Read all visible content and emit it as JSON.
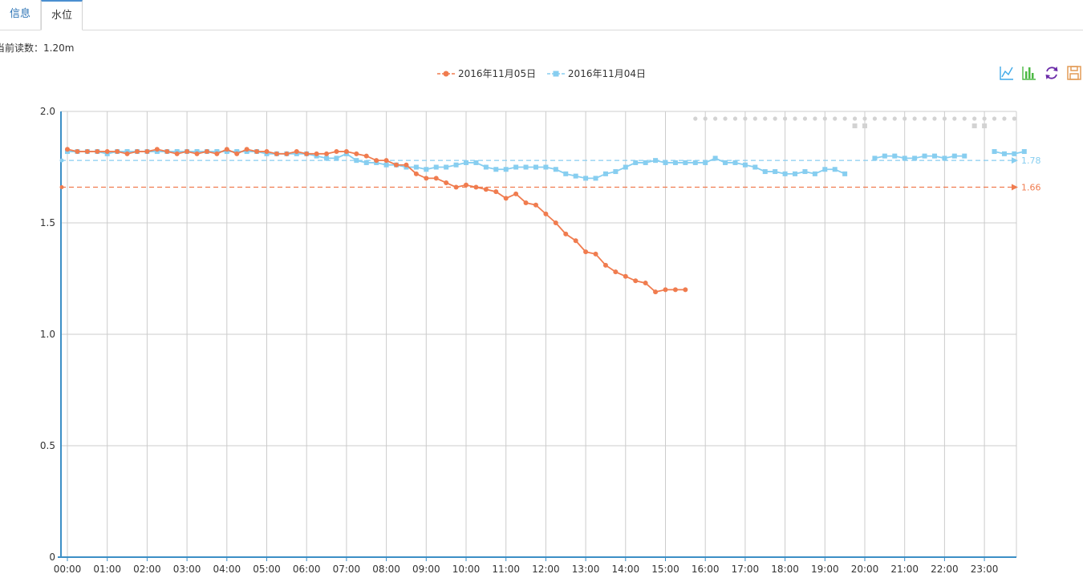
{
  "tabs": [
    {
      "label": "信息",
      "active": false
    },
    {
      "label": "水位",
      "active": true
    }
  ],
  "current_reading": {
    "label": "当前读数：",
    "value": "1.20m"
  },
  "toolbox": [
    "line-chart-icon",
    "bar-chart-icon",
    "restore-icon",
    "save-image-icon"
  ],
  "colors": {
    "series1": "#f07c4f",
    "series2": "#87cef0",
    "grid": "#cccccc",
    "axis": "#3c8fc6",
    "missing": "#d3d3d3"
  },
  "chart_data": {
    "type": "line",
    "x_ticks": [
      "00:00",
      "01:00",
      "02:00",
      "03:00",
      "04:00",
      "05:00",
      "06:00",
      "07:00",
      "08:00",
      "09:00",
      "10:00",
      "11:00",
      "12:00",
      "13:00",
      "14:00",
      "15:00",
      "16:00",
      "17:00",
      "18:00",
      "19:00",
      "20:00",
      "21:00",
      "22:00",
      "23:00"
    ],
    "x_interval_minutes": 15,
    "ylim": [
      0,
      2.0
    ],
    "y_ticks": [
      "0",
      "0.5",
      "1.0",
      "1.5",
      "2.0"
    ],
    "grid": true,
    "legend_position": "top-center",
    "series": [
      {
        "name": "2016年11月05日",
        "marker": "circle",
        "avg_label": "1.66",
        "values": [
          1.83,
          1.82,
          1.82,
          1.82,
          1.82,
          1.82,
          1.81,
          1.82,
          1.82,
          1.83,
          1.82,
          1.81,
          1.82,
          1.81,
          1.82,
          1.81,
          1.83,
          1.81,
          1.83,
          1.82,
          1.82,
          1.81,
          1.81,
          1.82,
          1.81,
          1.81,
          1.81,
          1.82,
          1.82,
          1.81,
          1.8,
          1.78,
          1.78,
          1.76,
          1.76,
          1.72,
          1.7,
          1.7,
          1.68,
          1.66,
          1.67,
          1.66,
          1.65,
          1.64,
          1.61,
          1.63,
          1.59,
          1.58,
          1.54,
          1.5,
          1.45,
          1.42,
          1.37,
          1.36,
          1.31,
          1.28,
          1.26,
          1.24,
          1.23,
          1.19,
          1.2,
          1.2,
          1.2,
          null,
          null,
          null,
          null,
          null,
          null,
          null,
          null,
          null,
          null,
          null,
          null,
          null,
          null,
          null,
          null,
          null,
          null,
          null,
          null,
          null,
          null,
          null,
          null,
          null,
          null,
          null,
          null,
          null,
          null,
          null,
          null,
          null
        ]
      },
      {
        "name": "2016年11月04日",
        "marker": "square",
        "avg_label": "1.78",
        "values": [
          1.82,
          1.82,
          1.82,
          1.82,
          1.81,
          1.82,
          1.82,
          1.82,
          1.82,
          1.82,
          1.82,
          1.82,
          1.82,
          1.82,
          1.82,
          1.82,
          1.82,
          1.82,
          1.82,
          1.82,
          1.81,
          1.81,
          1.81,
          1.81,
          1.81,
          1.8,
          1.79,
          1.79,
          1.81,
          1.78,
          1.77,
          1.77,
          1.76,
          1.76,
          1.75,
          1.75,
          1.74,
          1.75,
          1.75,
          1.76,
          1.77,
          1.77,
          1.75,
          1.74,
          1.74,
          1.75,
          1.75,
          1.75,
          1.75,
          1.74,
          1.72,
          1.71,
          1.7,
          1.7,
          1.72,
          1.73,
          1.75,
          1.77,
          1.77,
          1.78,
          1.77,
          1.77,
          1.77,
          1.77,
          1.77,
          1.79,
          1.77,
          1.77,
          1.76,
          1.75,
          1.73,
          1.73,
          1.72,
          1.72,
          1.73,
          1.72,
          1.74,
          1.74,
          1.72,
          null,
          null,
          1.79,
          1.8,
          1.8,
          1.79,
          1.79,
          1.8,
          1.8,
          1.79,
          1.8,
          1.8,
          null,
          null,
          1.82,
          1.81,
          1.81,
          1.82
        ]
      }
    ]
  }
}
